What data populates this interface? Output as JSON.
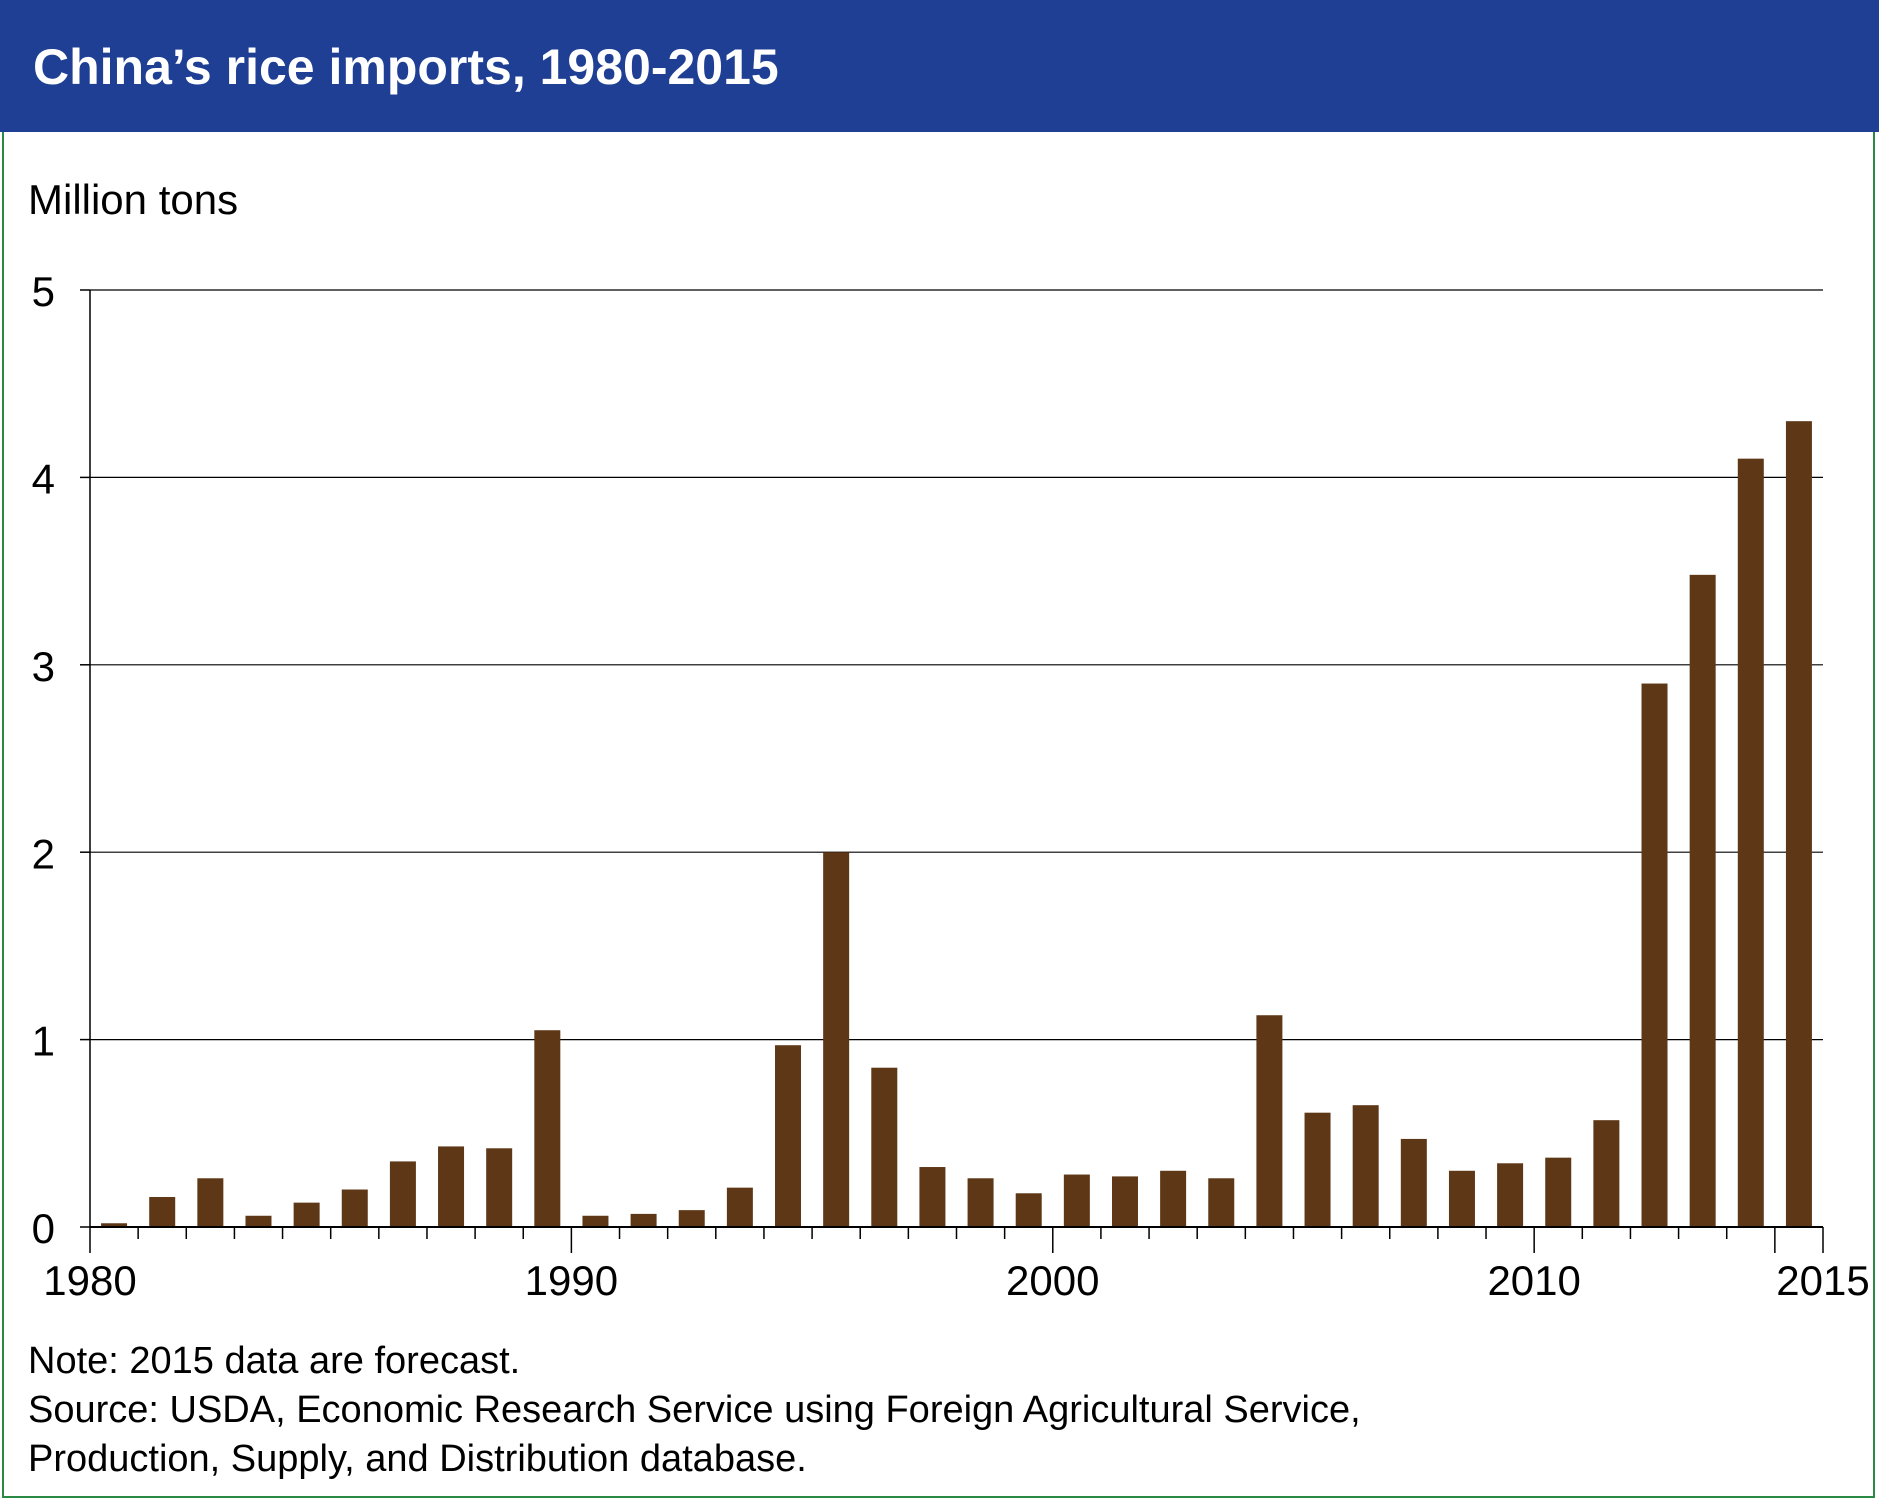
{
  "title": "China’s rice imports, 1980-2015",
  "colors": {
    "header": "#1f3f94",
    "bar": "#5e3716",
    "border": "#2a8a44"
  },
  "notes": {
    "note": "Note: 2015 data are forecast.",
    "source_line1": "Source: USDA, Economic Research Service using Foreign Agricultural Service,",
    "source_line2": "Production, Supply, and Distribution database."
  },
  "chart_data": {
    "type": "bar",
    "ylabel": "Million tons",
    "ylim": [
      0,
      5
    ],
    "yticks": [
      0,
      1,
      2,
      3,
      4,
      5
    ],
    "xtick_labels": [
      "1980",
      "1990",
      "2000",
      "2010",
      "2015"
    ],
    "grid": true,
    "categories": [
      1980,
      1981,
      1982,
      1983,
      1984,
      1985,
      1986,
      1987,
      1988,
      1989,
      1990,
      1991,
      1992,
      1993,
      1994,
      1995,
      1996,
      1997,
      1998,
      1999,
      2000,
      2001,
      2002,
      2003,
      2004,
      2005,
      2006,
      2007,
      2008,
      2009,
      2010,
      2011,
      2012,
      2013,
      2014,
      2015
    ],
    "values": [
      0.02,
      0.16,
      0.26,
      0.06,
      0.13,
      0.2,
      0.35,
      0.43,
      0.42,
      1.05,
      0.06,
      0.07,
      0.09,
      0.21,
      0.97,
      2.0,
      0.85,
      0.32,
      0.26,
      0.18,
      0.28,
      0.27,
      0.3,
      0.26,
      1.13,
      0.61,
      0.65,
      0.47,
      0.3,
      0.34,
      0.37,
      0.57,
      2.9,
      3.48,
      4.1,
      4.3
    ]
  }
}
